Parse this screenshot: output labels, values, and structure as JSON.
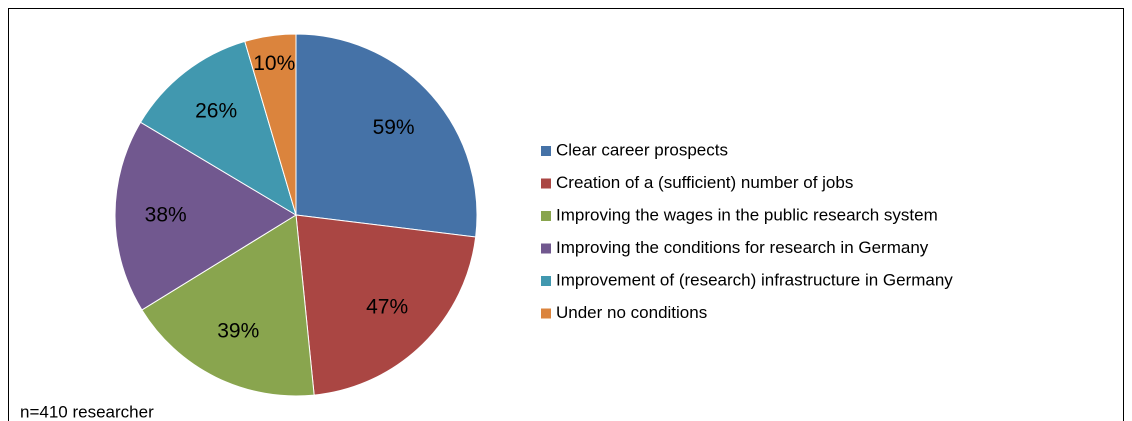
{
  "chart_data": {
    "type": "pie",
    "categories": [
      "Clear career prospects",
      "Creation of a (sufficient) number of jobs",
      "Improving the wages in the public research system",
      "Improving the conditions for research in Germany",
      "Improvement of (research) infrastructure in Germany",
      "Under no conditions"
    ],
    "values": [
      59,
      47,
      39,
      38,
      26,
      10
    ],
    "value_labels": [
      "59%",
      "47%",
      "39%",
      "38%",
      "26%",
      "10%"
    ],
    "colors": [
      "#4572a7",
      "#aa4643",
      "#89a54e",
      "#71588f",
      "#4198af",
      "#db843d"
    ],
    "legend": "right",
    "note": "n=410 researcher"
  }
}
